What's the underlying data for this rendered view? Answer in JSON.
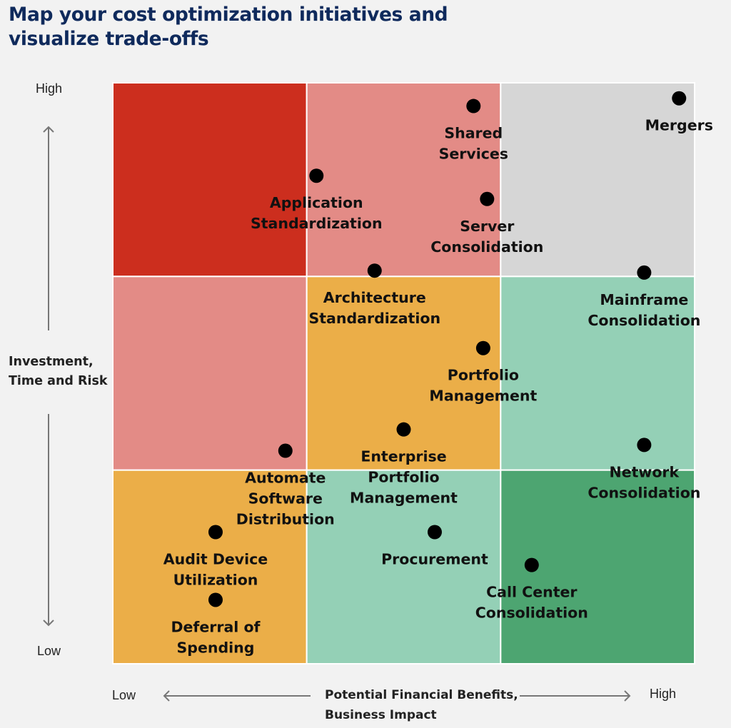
{
  "title_lines": [
    "Map your cost optimization initiatives and",
    "visualize trade-offs"
  ],
  "chart_data": {
    "type": "scatter",
    "title": "Map your cost optimization initiatives and visualize trade-offs",
    "xlabel_lines": [
      "Potential Financial Benefits,",
      "Business Impact"
    ],
    "ylabel_lines": [
      "Investment,",
      "Time and Risk"
    ],
    "x_low_label": "Low",
    "x_high_label": "High",
    "y_low_label": "Low",
    "y_high_label": "High",
    "xlim": [
      0,
      3
    ],
    "ylim": [
      0,
      3
    ],
    "grid": "3x3",
    "cells": [
      {
        "row": 0,
        "col": 0,
        "color": "#cc2e1e"
      },
      {
        "row": 0,
        "col": 1,
        "color": "#e38b86"
      },
      {
        "row": 0,
        "col": 2,
        "color": "#d6d6d6"
      },
      {
        "row": 1,
        "col": 0,
        "color": "#e38b86"
      },
      {
        "row": 1,
        "col": 1,
        "color": "#ebae48"
      },
      {
        "row": 1,
        "col": 2,
        "color": "#94d0b6"
      },
      {
        "row": 2,
        "col": 0,
        "color": "#ebae48"
      },
      {
        "row": 2,
        "col": 1,
        "color": "#94d0b6"
      },
      {
        "row": 2,
        "col": 2,
        "color": "#4da571"
      }
    ],
    "points": [
      {
        "label": [
          "Mergers"
        ],
        "x": 2.92,
        "y": 2.92
      },
      {
        "label": [
          "Shared",
          "Services"
        ],
        "x": 1.86,
        "y": 2.88
      },
      {
        "label": [
          "Application",
          "Standardization"
        ],
        "x": 1.05,
        "y": 2.52
      },
      {
        "label": [
          "Server",
          "Consolidation"
        ],
        "x": 1.93,
        "y": 2.4
      },
      {
        "label": [
          "Architecture",
          "Standardization"
        ],
        "x": 1.35,
        "y": 2.03
      },
      {
        "label": [
          "Mainframe",
          "Consolidation"
        ],
        "x": 2.74,
        "y": 2.02
      },
      {
        "label": [
          "Portfolio",
          "Management"
        ],
        "x": 1.91,
        "y": 1.63
      },
      {
        "label": [
          "Enterprise",
          "Portfolio",
          "Management"
        ],
        "x": 1.5,
        "y": 1.21
      },
      {
        "label": [
          "Automate",
          "Software",
          "Distribution"
        ],
        "x": 0.89,
        "y": 1.1
      },
      {
        "label": [
          "Network",
          "Consolidation"
        ],
        "x": 2.74,
        "y": 1.13
      },
      {
        "label": [
          "Audit Device",
          "Utilization"
        ],
        "x": 0.53,
        "y": 0.68
      },
      {
        "label": [
          "Procurement"
        ],
        "x": 1.66,
        "y": 0.68
      },
      {
        "label": [
          "Call Center",
          "Consolidation"
        ],
        "x": 2.16,
        "y": 0.51
      },
      {
        "label": [
          "Deferral of",
          "Spending"
        ],
        "x": 0.53,
        "y": 0.33
      }
    ],
    "colors": {
      "dot": "#000000",
      "axis_arrow": "#777777",
      "title": "#0f2a5c"
    }
  }
}
